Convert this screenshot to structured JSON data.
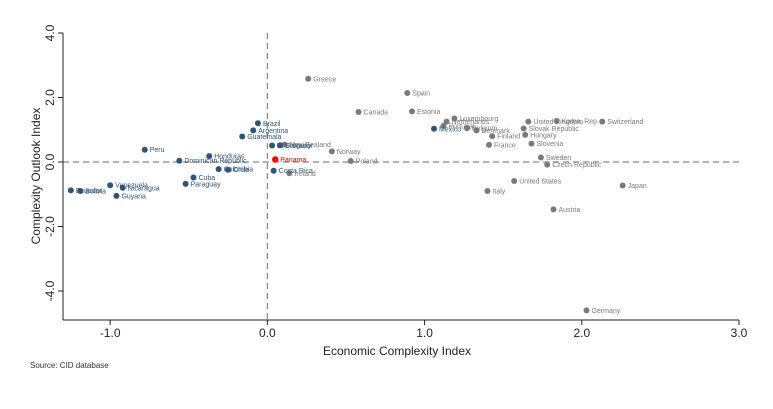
{
  "chart_data": {
    "type": "scatter",
    "title": "",
    "xlabel": "Economic Complexity Index",
    "ylabel": "Complexity Outlook Index",
    "xlim": [
      -1.3,
      3.0
    ],
    "ylim": [
      -4.9,
      4.0
    ],
    "xticks": [
      -1.0,
      0.0,
      1.0,
      2.0,
      3.0
    ],
    "xtick_labels": [
      "-1.0",
      "0.0",
      "1.0",
      "2.0",
      "3.0"
    ],
    "yticks": [
      -4.0,
      -2.0,
      0.0,
      2.0,
      4.0
    ],
    "ytick_labels": [
      "-4.0",
      "-2.0",
      "0.0",
      "2.0",
      "4.0"
    ],
    "reference_lines": {
      "x": 0.0,
      "y": 0.0
    },
    "grid": false,
    "colors": {
      "latin_america": "#2e5577",
      "other": "#7a7a7a",
      "highlight": "#ff0000",
      "axis": "#222222",
      "reference": "#888888"
    },
    "series": [
      {
        "group": "latin_america",
        "points": [
          {
            "label": "Ecuador",
            "x": -1.25,
            "y": -0.88
          },
          {
            "label": "Bolivia",
            "x": -1.19,
            "y": -0.9
          },
          {
            "label": "Venezuela",
            "x": -1.0,
            "y": -0.72
          },
          {
            "label": "Nicaragua",
            "x": -0.92,
            "y": -0.8
          },
          {
            "label": "Guyana",
            "x": -0.96,
            "y": -1.05
          },
          {
            "label": "Peru",
            "x": -0.78,
            "y": 0.38
          },
          {
            "label": "Honduras",
            "x": -0.37,
            "y": 0.18
          },
          {
            "label": "Guatemala",
            "x": -0.16,
            "y": 0.79
          },
          {
            "label": "Dominican Republic",
            "x": -0.56,
            "y": 0.04
          },
          {
            "label": "Argentina",
            "x": -0.09,
            "y": 0.98
          },
          {
            "label": "Brazil",
            "x": -0.06,
            "y": 1.2
          },
          {
            "label": "El Salvador",
            "x": 0.03,
            "y": 0.51
          },
          {
            "label": "Uruguay",
            "x": 0.08,
            "y": 0.52
          },
          {
            "label": "Cuba",
            "x": -0.47,
            "y": -0.48
          },
          {
            "label": "Paraguay",
            "x": -0.52,
            "y": -0.68
          },
          {
            "label": "Colombia",
            "x": -0.31,
            "y": -0.22
          },
          {
            "label": "Chile",
            "x": -0.25,
            "y": -0.24
          },
          {
            "label": "Costa Rica",
            "x": 0.04,
            "y": -0.27
          },
          {
            "label": "Mexico",
            "x": 1.06,
            "y": 1.03
          }
        ]
      },
      {
        "group": "other",
        "points": [
          {
            "label": "Greece",
            "x": 0.26,
            "y": 2.58
          },
          {
            "label": "Spain",
            "x": 0.89,
            "y": 2.14
          },
          {
            "label": "Canada",
            "x": 0.58,
            "y": 1.55
          },
          {
            "label": "Estonia",
            "x": 0.92,
            "y": 1.57
          },
          {
            "label": "Luxembourg",
            "x": 1.19,
            "y": 1.35
          },
          {
            "label": "Netherlands",
            "x": 1.14,
            "y": 1.25
          },
          {
            "label": "Portugal",
            "x": 1.12,
            "y": 1.12
          },
          {
            "label": "Belgium",
            "x": 1.27,
            "y": 1.05
          },
          {
            "label": "Denmark",
            "x": 1.33,
            "y": 0.98
          },
          {
            "label": "Finland",
            "x": 1.43,
            "y": 0.8
          },
          {
            "label": "France",
            "x": 1.41,
            "y": 0.53
          },
          {
            "label": "United Kingdom",
            "x": 1.66,
            "y": 1.25
          },
          {
            "label": "Korea, Rep.",
            "x": 1.84,
            "y": 1.27
          },
          {
            "label": "Switzerland",
            "x": 2.13,
            "y": 1.25
          },
          {
            "label": "Slovak Republic",
            "x": 1.63,
            "y": 1.04
          },
          {
            "label": "Hungary",
            "x": 1.64,
            "y": 0.84
          },
          {
            "label": "Slovenia",
            "x": 1.68,
            "y": 0.57
          },
          {
            "label": "Sweden",
            "x": 1.74,
            "y": 0.14
          },
          {
            "label": "Czech Republic",
            "x": 1.78,
            "y": -0.08
          },
          {
            "label": "Poland",
            "x": 0.53,
            "y": 0.03
          },
          {
            "label": "New Zealand",
            "x": 0.11,
            "y": 0.54
          },
          {
            "label": "Norway",
            "x": 0.41,
            "y": 0.33
          },
          {
            "label": "Ireland",
            "x": 0.14,
            "y": -0.35
          },
          {
            "label": "Italy",
            "x": 1.4,
            "y": -0.9
          },
          {
            "label": "United States",
            "x": 1.57,
            "y": -0.59
          },
          {
            "label": "Japan",
            "x": 2.26,
            "y": -0.73
          },
          {
            "label": "Austria",
            "x": 1.82,
            "y": -1.47
          },
          {
            "label": "Germany",
            "x": 2.03,
            "y": -4.6
          }
        ]
      },
      {
        "group": "highlight",
        "points": [
          {
            "label": "Panama",
            "x": 0.05,
            "y": 0.08
          }
        ]
      }
    ]
  },
  "source_note": "Source: CID database"
}
